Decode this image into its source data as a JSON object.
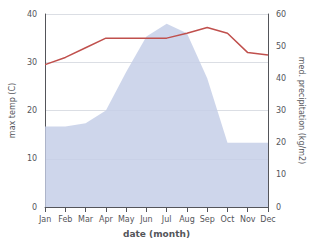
{
  "chart_data": {
    "type": "line",
    "xlabel": "date (month)",
    "ylabel": "max temp (C)",
    "y2label": "med. precipitation (kg/m2)",
    "categories": [
      "Jan",
      "Feb",
      "Mar",
      "Apr",
      "May",
      "Jun",
      "Jul",
      "Aug",
      "Sep",
      "Oct",
      "Nov",
      "Dec"
    ],
    "series": [
      {
        "type": "area",
        "axis": "y2",
        "color": "#c5cfe8",
        "values": [
          25,
          25,
          26,
          30,
          42,
          53,
          57,
          54,
          40,
          20,
          20,
          20
        ]
      },
      {
        "type": "line",
        "color": "#c0504d",
        "values": [
          29.5,
          31.0,
          33.0,
          35.0,
          35.0,
          35.0,
          35.0,
          36.0,
          37.2,
          36.0,
          32.0,
          31.5
        ]
      }
    ],
    "ylim": [
      0,
      40
    ],
    "yticks": [
      0,
      10,
      20,
      30,
      40
    ],
    "y2lim": [
      0,
      60
    ],
    "y2ticks": [
      0,
      10,
      20,
      30,
      40,
      50,
      60
    ],
    "grid": true
  }
}
